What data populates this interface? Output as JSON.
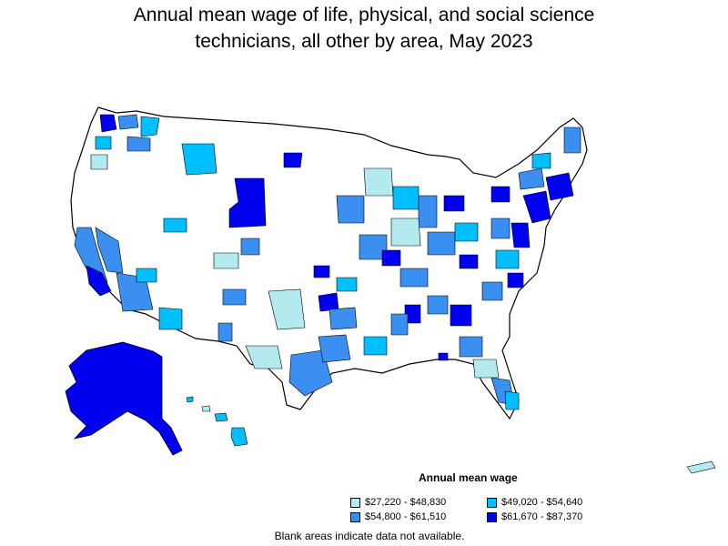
{
  "title": "Annual mean wage of life, physical, and social science\ntechnicians, all other by area, May 2023",
  "legend": {
    "title": "Annual mean wage",
    "items": [
      {
        "label": "$27,220 - $48,830",
        "color": "#b2eaf0"
      },
      {
        "label": "$49,020 - $54,640",
        "color": "#00bfff"
      },
      {
        "label": "$54,800 - $61,510",
        "color": "#3a8ff0"
      },
      {
        "label": "$61,670 - $87,370",
        "color": "#0000ee"
      }
    ]
  },
  "note": "Blank areas indicate data not available.",
  "colors": {
    "tier1": "#b2eaf0",
    "tier2": "#00bfff",
    "tier3": "#3a8ff0",
    "tier4": "#0000ee",
    "outline": "#000000",
    "blank": "#ffffff"
  }
}
